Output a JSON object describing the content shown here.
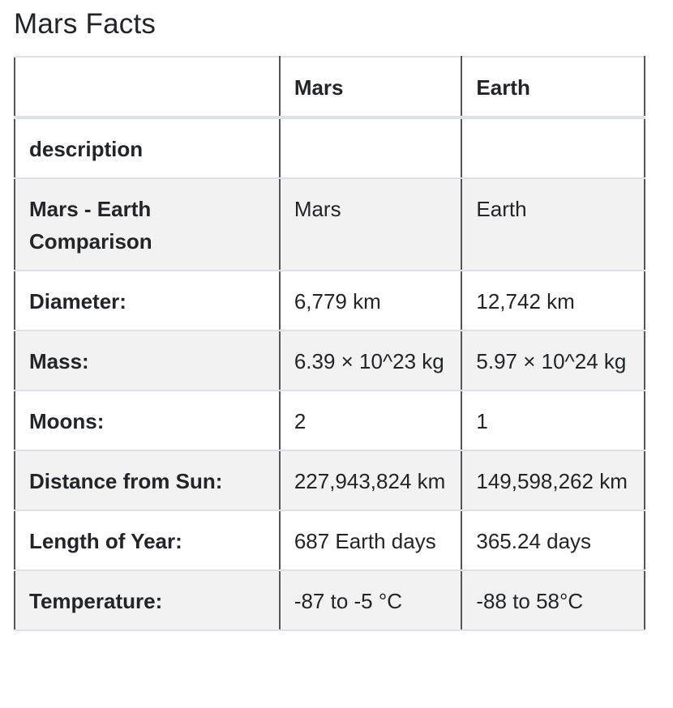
{
  "title": "Mars Facts",
  "table": {
    "header": [
      "",
      "Mars",
      "Earth"
    ],
    "index_label": "description",
    "rows": [
      {
        "label": "Mars - Earth Comparison",
        "mars": "Mars",
        "earth": "Earth"
      },
      {
        "label": "Diameter:",
        "mars": "6,779 km",
        "earth": "12,742 km"
      },
      {
        "label": "Mass:",
        "mars": "6.39 × 10^23 kg",
        "earth": "5.97 × 10^24 kg"
      },
      {
        "label": "Moons:",
        "mars": "2",
        "earth": "1"
      },
      {
        "label": "Distance from Sun:",
        "mars": "227,943,824 km",
        "earth": "149,598,262 km"
      },
      {
        "label": "Length of Year:",
        "mars": "687 Earth days",
        "earth": "365.24 days"
      },
      {
        "label": "Temperature:",
        "mars": "-87 to -5 °C",
        "earth": "-88 to 58°C"
      }
    ]
  }
}
